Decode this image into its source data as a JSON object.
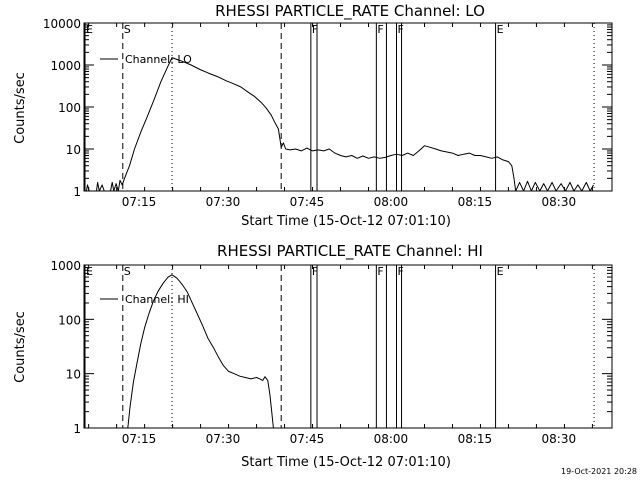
{
  "chart_data": [
    {
      "type": "line",
      "title": "RHESSI PARTICLE_RATE Channel: LO",
      "xlabel": "Start Time (15-Oct-12 07:01:10)",
      "ylabel": "Counts/sec",
      "y_scale": "log",
      "ylim": [
        1,
        10000
      ],
      "xlim": [
        4.17,
        98.5
      ],
      "x_ticks": [
        {
          "v": 14,
          "label": "07:15"
        },
        {
          "v": 29,
          "label": "07:30"
        },
        {
          "v": 44,
          "label": "07:45"
        },
        {
          "v": 59,
          "label": "08:00"
        },
        {
          "v": 74,
          "label": "08:15"
        },
        {
          "v": 89,
          "label": "08:30"
        }
      ],
      "y_ticks": [
        {
          "v": 1,
          "label": "1"
        },
        {
          "v": 10,
          "label": "10"
        },
        {
          "v": 100,
          "label": "100"
        },
        {
          "v": 1000,
          "label": "1000"
        },
        {
          "v": 10000,
          "label": "10000"
        }
      ],
      "legend": {
        "label": "Channel: LO",
        "position": "top-left"
      },
      "markers": [
        {
          "x": 4.35,
          "letter": "E",
          "style": "solid"
        },
        {
          "x": 11.1,
          "letter": "S",
          "style": "dashed"
        },
        {
          "x": 19.9,
          "letter": "",
          "style": "dotted"
        },
        {
          "x": 39.4,
          "letter": "",
          "style": "dashed"
        },
        {
          "x": 44.7,
          "letter": "F",
          "style": "solid"
        },
        {
          "x": 45.8,
          "letter": "",
          "style": "solid"
        },
        {
          "x": 56.4,
          "letter": "F",
          "style": "solid"
        },
        {
          "x": 58.2,
          "letter": "",
          "style": "solid"
        },
        {
          "x": 60.0,
          "letter": "F",
          "style": "solid"
        },
        {
          "x": 60.9,
          "letter": "",
          "style": "solid"
        },
        {
          "x": 77.7,
          "letter": "E",
          "style": "solid"
        },
        {
          "x": 95.3,
          "letter": "",
          "style": "dotted"
        }
      ],
      "series": [
        {
          "name": "Channel: LO",
          "points": [
            [
              4.6,
              1
            ],
            [
              4.8,
              1.4
            ],
            [
              5.1,
              1
            ],
            [
              6.4,
              1
            ],
            [
              6.6,
              1.6
            ],
            [
              6.9,
              1
            ],
            [
              7.4,
              1.4
            ],
            [
              7.8,
              1
            ],
            [
              8.9,
              1
            ],
            [
              9.2,
              1.6
            ],
            [
              9.5,
              1
            ],
            [
              9.9,
              1.5
            ],
            [
              10.3,
              1
            ],
            [
              10.6,
              1.8
            ],
            [
              11.0,
              1.4
            ],
            [
              11.4,
              2
            ],
            [
              12.3,
              4
            ],
            [
              13.2,
              10
            ],
            [
              14.3,
              25
            ],
            [
              15.5,
              60
            ],
            [
              16.7,
              150
            ],
            [
              17.9,
              400
            ],
            [
              19.1,
              900
            ],
            [
              19.9,
              1500
            ],
            [
              20.8,
              1350
            ],
            [
              21.9,
              1200
            ],
            [
              23.3,
              1000
            ],
            [
              24.9,
              780
            ],
            [
              26.4,
              640
            ],
            [
              28.0,
              530
            ],
            [
              29.6,
              420
            ],
            [
              30.8,
              360
            ],
            [
              32.2,
              300
            ],
            [
              33.4,
              230
            ],
            [
              34.6,
              180
            ],
            [
              35.8,
              130
            ],
            [
              36.7,
              95
            ],
            [
              37.6,
              65
            ],
            [
              38.3,
              42
            ],
            [
              38.9,
              30
            ],
            [
              39.4,
              11
            ],
            [
              39.8,
              14
            ],
            [
              40.2,
              10
            ],
            [
              41.0,
              9.5
            ],
            [
              42.0,
              10
            ],
            [
              43.0,
              9
            ],
            [
              44.0,
              10.5
            ],
            [
              45.0,
              9
            ],
            [
              46.0,
              9.5
            ],
            [
              47.0,
              9
            ],
            [
              48.0,
              10
            ],
            [
              49.0,
              8
            ],
            [
              50.0,
              7
            ],
            [
              51.0,
              6.5
            ],
            [
              52.0,
              7
            ],
            [
              53.0,
              6
            ],
            [
              54.0,
              6.8
            ],
            [
              55.0,
              6
            ],
            [
              56.0,
              6.5
            ],
            [
              57.0,
              6
            ],
            [
              58.0,
              6.3
            ],
            [
              59.0,
              7
            ],
            [
              60.0,
              7.5
            ],
            [
              61.0,
              7
            ],
            [
              62.0,
              8
            ],
            [
              63.0,
              7
            ],
            [
              64.0,
              9
            ],
            [
              65.0,
              12
            ],
            [
              66.0,
              11
            ],
            [
              67.0,
              10
            ],
            [
              68.0,
              9
            ],
            [
              69.0,
              8.5
            ],
            [
              70.0,
              8
            ],
            [
              71.0,
              7
            ],
            [
              72.0,
              7.5
            ],
            [
              73.0,
              8
            ],
            [
              74.0,
              7
            ],
            [
              75.0,
              7
            ],
            [
              76.0,
              6.5
            ],
            [
              77.0,
              6
            ],
            [
              78.0,
              6.5
            ],
            [
              79.0,
              5.5
            ],
            [
              80.0,
              5
            ],
            [
              80.6,
              4
            ],
            [
              81.0,
              2
            ],
            [
              81.3,
              1
            ],
            [
              82.0,
              1.6
            ],
            [
              82.7,
              1
            ],
            [
              83.4,
              1.7
            ],
            [
              84.1,
              1
            ],
            [
              84.8,
              1.6
            ],
            [
              85.6,
              1
            ],
            [
              86.3,
              1.5
            ],
            [
              87.0,
              1
            ],
            [
              87.8,
              1.6
            ],
            [
              88.5,
              1
            ],
            [
              89.4,
              1.5
            ],
            [
              90.2,
              1
            ],
            [
              91.0,
              1.6
            ],
            [
              91.7,
              1
            ],
            [
              92.4,
              1.4
            ],
            [
              93.1,
              1
            ],
            [
              93.9,
              1.6
            ],
            [
              94.6,
              1
            ],
            [
              95.2,
              1.4
            ]
          ]
        }
      ]
    },
    {
      "type": "line",
      "title": "RHESSI PARTICLE_RATE Channel: HI",
      "xlabel": "Start Time (15-Oct-12 07:01:10)",
      "ylabel": "Counts/sec",
      "y_scale": "log",
      "ylim": [
        1,
        1000
      ],
      "xlim": [
        4.17,
        98.5
      ],
      "x_ticks": [
        {
          "v": 14,
          "label": "07:15"
        },
        {
          "v": 29,
          "label": "07:30"
        },
        {
          "v": 44,
          "label": "07:45"
        },
        {
          "v": 59,
          "label": "08:00"
        },
        {
          "v": 74,
          "label": "08:15"
        },
        {
          "v": 89,
          "label": "08:30"
        }
      ],
      "y_ticks": [
        {
          "v": 1,
          "label": "1"
        },
        {
          "v": 10,
          "label": "10"
        },
        {
          "v": 100,
          "label": "100"
        },
        {
          "v": 1000,
          "label": "1000"
        }
      ],
      "legend": {
        "label": "Channel: HI",
        "position": "top-left"
      },
      "markers": [
        {
          "x": 4.35,
          "letter": "E",
          "style": "solid"
        },
        {
          "x": 11.1,
          "letter": "S",
          "style": "dashed"
        },
        {
          "x": 19.9,
          "letter": "",
          "style": "dotted"
        },
        {
          "x": 39.4,
          "letter": "",
          "style": "dashed"
        },
        {
          "x": 44.7,
          "letter": "F",
          "style": "solid"
        },
        {
          "x": 45.8,
          "letter": "",
          "style": "solid"
        },
        {
          "x": 56.4,
          "letter": "F",
          "style": "solid"
        },
        {
          "x": 58.2,
          "letter": "",
          "style": "solid"
        },
        {
          "x": 60.0,
          "letter": "F",
          "style": "solid"
        },
        {
          "x": 60.9,
          "letter": "",
          "style": "solid"
        },
        {
          "x": 77.7,
          "letter": "E",
          "style": "solid"
        },
        {
          "x": 95.3,
          "letter": "",
          "style": "dotted"
        }
      ],
      "series": [
        {
          "name": "Channel: HI",
          "points": [
            [
              12.0,
              1
            ],
            [
              12.4,
              2.5
            ],
            [
              13.0,
              7
            ],
            [
              13.6,
              15
            ],
            [
              14.3,
              35
            ],
            [
              15.0,
              70
            ],
            [
              15.8,
              130
            ],
            [
              16.6,
              220
            ],
            [
              17.4,
              330
            ],
            [
              18.3,
              460
            ],
            [
              19.2,
              600
            ],
            [
              19.9,
              660
            ],
            [
              20.8,
              570
            ],
            [
              21.7,
              440
            ],
            [
              22.6,
              320
            ],
            [
              23.6,
              190
            ],
            [
              24.5,
              120
            ],
            [
              25.4,
              75
            ],
            [
              26.3,
              45
            ],
            [
              27.3,
              30
            ],
            [
              28.2,
              20
            ],
            [
              29.1,
              14
            ],
            [
              30.0,
              11
            ],
            [
              31.0,
              10
            ],
            [
              32.0,
              9
            ],
            [
              33.0,
              8.5
            ],
            [
              34.0,
              8
            ],
            [
              35.0,
              8.5
            ],
            [
              35.6,
              8
            ],
            [
              36.1,
              7.5
            ],
            [
              36.5,
              8.8
            ],
            [
              37.0,
              7.5
            ],
            [
              37.4,
              4
            ],
            [
              37.7,
              2
            ],
            [
              38.0,
              1
            ]
          ]
        }
      ]
    }
  ],
  "footer": {
    "date": "19-Oct-2021 20:28"
  }
}
